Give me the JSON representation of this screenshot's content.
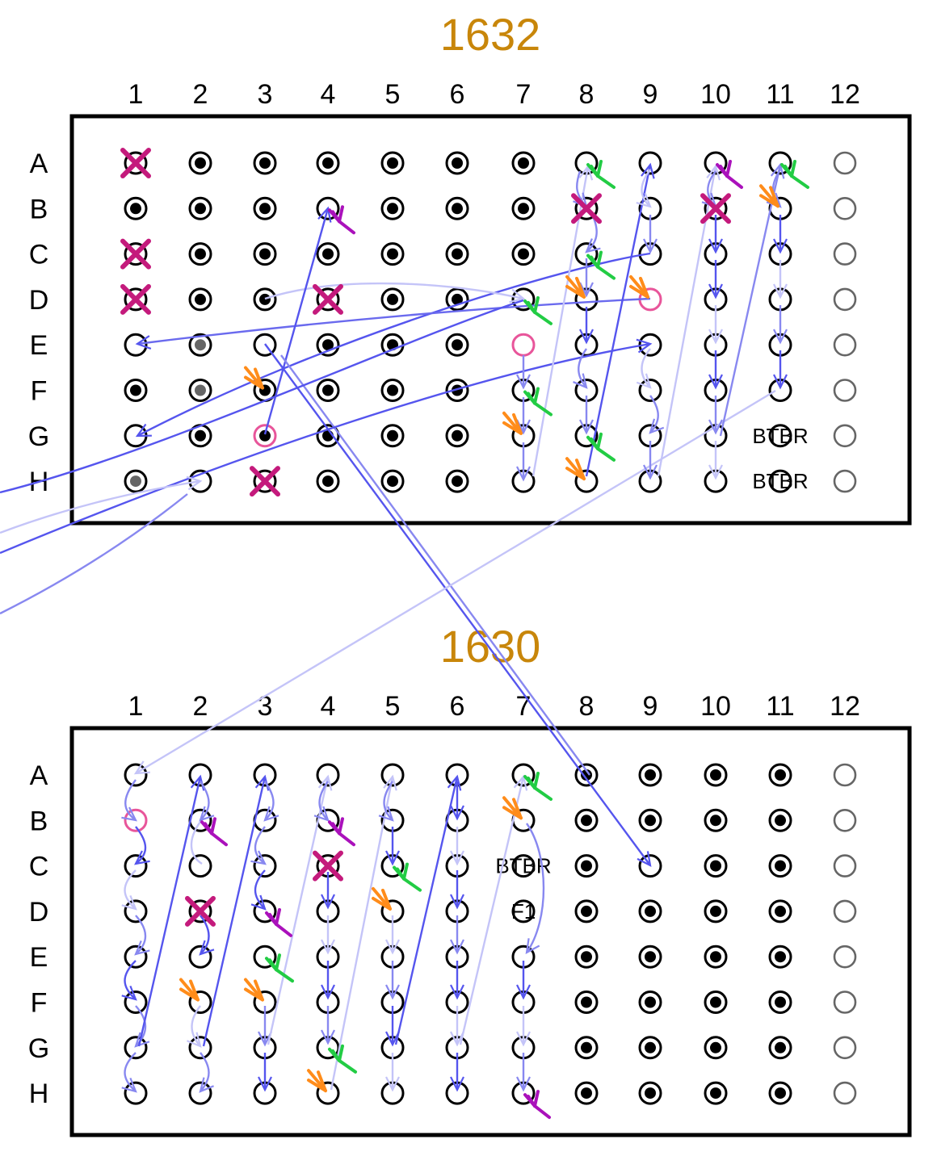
{
  "colors": {
    "title": "#c8860a",
    "frame": "#000000",
    "well_stroke": "#000000",
    "empty_col_stroke": "#666666",
    "gray_dot": "#666666",
    "pink_ring": "#e8559a",
    "x_mark": "#c41a7c",
    "orange_mark": "#ff8c1a",
    "green_mark": "#22cc44",
    "purple_mark": "#aa11bb",
    "arrow_dark": "#5555ee",
    "arrow_mid": "#8888f0",
    "arrow_light": "#c4c4f8"
  },
  "columns": [
    "1",
    "2",
    "3",
    "4",
    "5",
    "6",
    "7",
    "8",
    "9",
    "10",
    "11",
    "12"
  ],
  "rows": [
    "A",
    "B",
    "C",
    "D",
    "E",
    "F",
    "G",
    "H"
  ],
  "plates": [
    {
      "id": "plate-1632",
      "title": "1632",
      "filled": [
        "A2",
        "A3",
        "A4",
        "A5",
        "A6",
        "A7",
        "B1",
        "B2",
        "B3",
        "B5",
        "B6",
        "B7",
        "C2",
        "C3",
        "C4",
        "C5",
        "C6",
        "C7",
        "D2",
        "D3",
        "D5",
        "D6",
        "E4",
        "E5",
        "E6",
        "F1",
        "F3",
        "F4",
        "F5",
        "F6",
        "G2",
        "G4",
        "G5",
        "G6",
        "H4",
        "H5",
        "H6"
      ],
      "gray_dots": [
        "E2",
        "F2",
        "H1"
      ],
      "pink_rings": [
        "D9",
        "E7",
        "G3"
      ],
      "x_marks": [
        "A1",
        "C1",
        "D1",
        "D4",
        "B8",
        "B10",
        "H3"
      ],
      "orange_marks": [
        "F3",
        "D8",
        "D9",
        "B11",
        "G7",
        "H8"
      ],
      "green_marks": [
        "A8",
        "C8",
        "D7",
        "F7",
        "G8",
        "A11"
      ],
      "purple_marks": [
        "B4",
        "A10"
      ],
      "well_labels": [
        {
          "well": "G11",
          "text": "BTBR"
        },
        {
          "well": "H11",
          "text": "BTBR"
        }
      ]
    },
    {
      "id": "plate-1630",
      "title": "1630",
      "filled": [
        "A8",
        "A9",
        "A10",
        "A11",
        "B8",
        "B9",
        "B10",
        "B11",
        "C8",
        "C10",
        "C11",
        "D8",
        "D9",
        "D10",
        "D11",
        "E8",
        "E9",
        "E10",
        "E11",
        "F8",
        "F9",
        "F10",
        "F11",
        "G8",
        "G9",
        "G10",
        "G11",
        "H8",
        "H9",
        "H10",
        "H11"
      ],
      "gray_dots": [],
      "pink_rings": [
        "B1"
      ],
      "x_marks": [
        "D2",
        "C4"
      ],
      "orange_marks": [
        "F2",
        "F3",
        "H4",
        "D5",
        "B7"
      ],
      "green_marks": [
        "E3",
        "G4",
        "C5",
        "A7"
      ],
      "purple_marks": [
        "B2",
        "D3",
        "B4",
        "H7"
      ],
      "well_labels": [
        {
          "well": "C7",
          "text": "BTBR"
        },
        {
          "well": "D7",
          "text": "F1"
        }
      ]
    }
  ]
}
